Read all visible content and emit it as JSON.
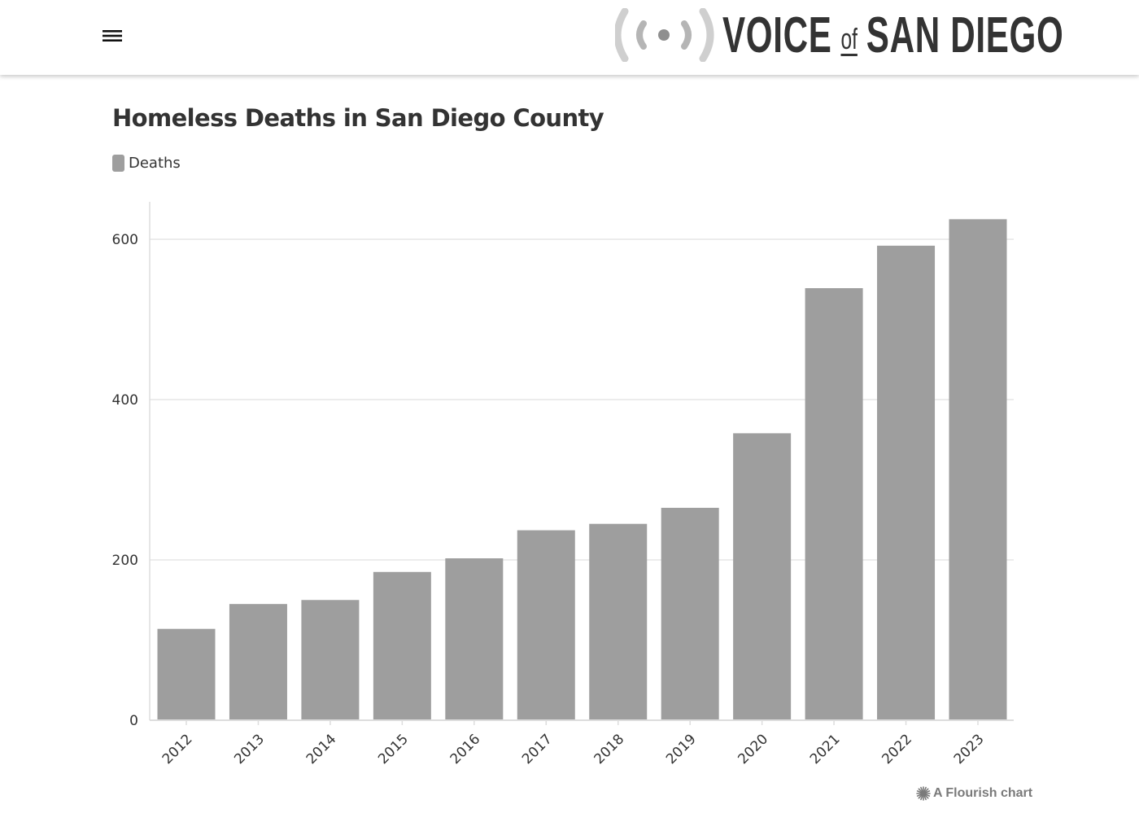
{
  "header": {
    "menu_icon": "hamburger-menu-icon",
    "logo": {
      "icon": "broadcast-signal-icon",
      "word_left": "VOICE",
      "word_of": "of",
      "word_right": "SAN DIEGO"
    }
  },
  "colors": {
    "bar": "#9e9e9e",
    "grid": "#e6e6e6",
    "axis": "#dddddd",
    "text": "#333333",
    "credit": "#7a7a7a"
  },
  "chart_data": {
    "type": "bar",
    "title": "Homeless Deaths in San Diego County",
    "xlabel": "",
    "ylabel": "",
    "categories": [
      "2012",
      "2013",
      "2014",
      "2015",
      "2016",
      "2017",
      "2018",
      "2019",
      "2020",
      "2021",
      "2022",
      "2023"
    ],
    "series": [
      {
        "name": "Deaths",
        "values": [
          114,
          145,
          150,
          185,
          202,
          237,
          245,
          265,
          358,
          539,
          592,
          625
        ]
      }
    ],
    "ylim": [
      0,
      650
    ],
    "yticks": [
      0,
      200,
      400,
      600
    ],
    "grid": true,
    "legend_position": "top-left",
    "x_tick_rotation": "-45deg"
  },
  "footer": {
    "credit": "A Flourish chart",
    "credit_icon": "flourish-burst-icon"
  }
}
